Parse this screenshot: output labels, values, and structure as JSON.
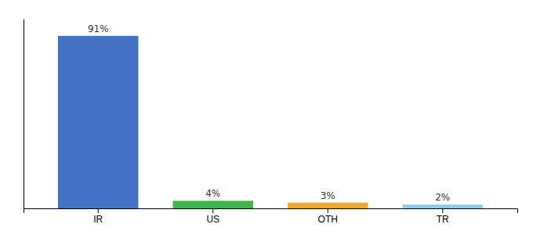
{
  "chart_data": {
    "type": "bar",
    "categories": [
      "IR",
      "US",
      "OTH",
      "TR"
    ],
    "values": [
      91,
      4,
      3,
      2
    ],
    "value_labels": [
      "91%",
      "4%",
      "3%",
      "2%"
    ],
    "colors": [
      "#4472c4",
      "#3cb84a",
      "#f5a623",
      "#87ceeb"
    ],
    "ylim": [
      0,
      100
    ],
    "data_labels": true,
    "tick_labels": "x"
  }
}
